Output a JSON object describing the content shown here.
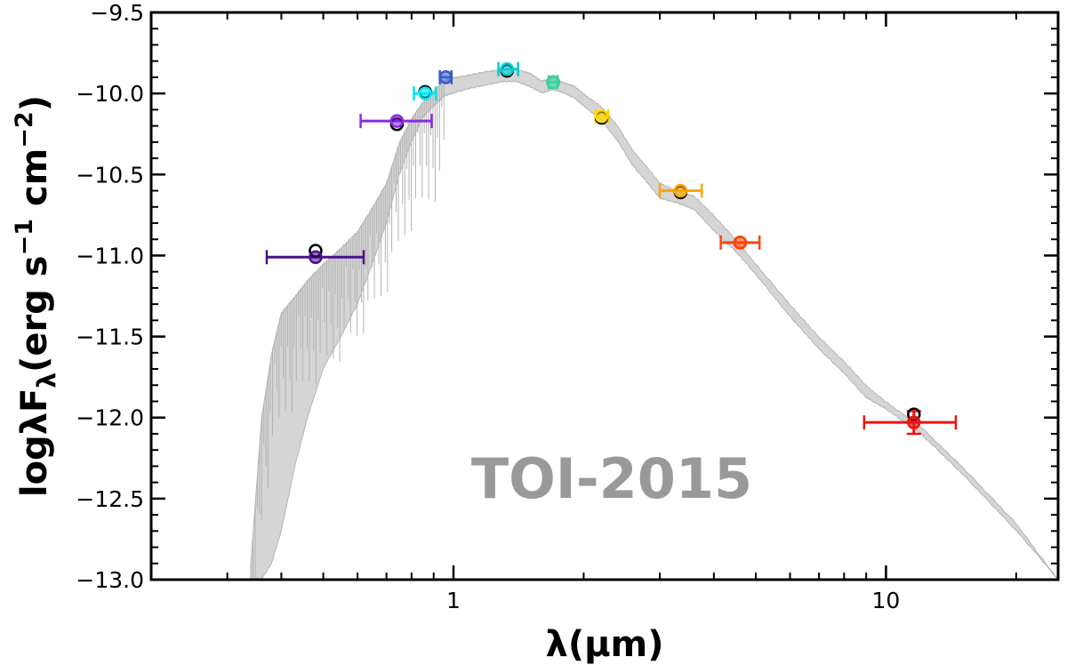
{
  "chart_data": {
    "type": "scatter",
    "xlabel": "λ(μm)",
    "ylabel_parts": {
      "pre": "logλF",
      "sub": "λ",
      "mid1": "(erg s",
      "sup1": "−1",
      "mid2": " cm",
      "sup2": "−2",
      "post": ")"
    },
    "ylabel": "logλFλ(erg s−1 cm−2)",
    "annotation": "TOI-2015",
    "x_scale": "log",
    "xlim": [
      0.2,
      25
    ],
    "ylim": [
      -13.0,
      -9.5
    ],
    "x_ticks": [
      1,
      10
    ],
    "x_tick_labels": [
      "1",
      "10"
    ],
    "y_ticks": [
      -13.0,
      -12.5,
      -12.0,
      -11.5,
      -11.0,
      -10.5,
      -10.0,
      -9.5
    ],
    "y_tick_labels": [
      "−13.0",
      "−12.5",
      "−12.0",
      "−11.5",
      "−11.0",
      "−10.5",
      "−10.0",
      "−9.5"
    ],
    "grid": false,
    "model_color": "#b3b3b3",
    "model_envelope": {
      "x": [
        0.34,
        0.36,
        0.38,
        0.4,
        0.43,
        0.46,
        0.5,
        0.55,
        0.6,
        0.65,
        0.7,
        0.75,
        0.8,
        0.85,
        0.9,
        0.95,
        1.0,
        1.1,
        1.2,
        1.3,
        1.4,
        1.5,
        1.6,
        1.7,
        1.8,
        1.9,
        2.0,
        2.2,
        2.4,
        2.6,
        2.8,
        3.0,
        3.3,
        3.6,
        4.0,
        4.5,
        5.0,
        6.0,
        7.0,
        8.0,
        9.0,
        10.0,
        12.0,
        15.0,
        20.0,
        25.0
      ],
      "y_high": [
        -12.9,
        -12.0,
        -11.6,
        -11.35,
        -11.25,
        -11.15,
        -11.05,
        -10.95,
        -10.85,
        -10.7,
        -10.55,
        -10.3,
        -10.15,
        -10.05,
        -9.98,
        -9.92,
        -9.9,
        -9.88,
        -9.86,
        -9.85,
        -9.85,
        -9.87,
        -9.92,
        -9.9,
        -9.93,
        -9.95,
        -10.0,
        -10.08,
        -10.2,
        -10.35,
        -10.45,
        -10.55,
        -10.6,
        -10.63,
        -10.75,
        -10.9,
        -11.05,
        -11.3,
        -11.5,
        -11.65,
        -11.8,
        -11.9,
        -12.05,
        -12.3,
        -12.65,
        -13.0
      ],
      "y_low": [
        -13.0,
        -13.0,
        -12.9,
        -12.7,
        -12.3,
        -12.0,
        -11.7,
        -11.5,
        -11.3,
        -11.05,
        -10.8,
        -10.5,
        -10.3,
        -10.15,
        -10.08,
        -10.02,
        -10.0,
        -9.97,
        -9.95,
        -9.93,
        -9.93,
        -9.96,
        -10.0,
        -9.98,
        -10.0,
        -10.03,
        -10.08,
        -10.17,
        -10.3,
        -10.45,
        -10.55,
        -10.65,
        -10.68,
        -10.72,
        -10.85,
        -10.98,
        -11.12,
        -11.38,
        -11.58,
        -11.73,
        -11.88,
        -11.95,
        -12.1,
        -12.35,
        -12.7,
        -13.0
      ]
    },
    "points": [
      {
        "x": 0.48,
        "x_err_low": 0.37,
        "x_err_high": 0.62,
        "y": -11.01,
        "y_model": -10.97,
        "color": "#4b0f8c"
      },
      {
        "x": 0.74,
        "x_err_low": 0.61,
        "x_err_high": 0.89,
        "y": -10.17,
        "y_model": -10.19,
        "color": "#8a2be2"
      },
      {
        "x": 0.86,
        "x_err_low": 0.81,
        "x_err_high": 0.91,
        "y": -10.0,
        "y_model": -9.99,
        "color": "#00e5ee"
      },
      {
        "x": 0.96,
        "x_err_low": 0.93,
        "x_err_high": 0.99,
        "y": -9.9,
        "y_model": -9.9,
        "color": "#3a5fcd"
      },
      {
        "x": 1.33,
        "x_err_low": 1.27,
        "x_err_high": 1.41,
        "y": -9.85,
        "y_model": -9.86,
        "color": "#00ced1"
      },
      {
        "x": 1.7,
        "x_err_low": 1.66,
        "x_err_high": 1.74,
        "y": -9.93,
        "y_model": -9.93,
        "color": "#3dd6a5"
      },
      {
        "x": 2.2,
        "x_err_low": 2.13,
        "x_err_high": 2.28,
        "y": -10.14,
        "y_model": -10.15,
        "color": "#ffd700"
      },
      {
        "x": 3.35,
        "x_err_low": 3.0,
        "x_err_high": 3.75,
        "y": -10.6,
        "y_model": -10.61,
        "color": "#ffa500"
      },
      {
        "x": 4.6,
        "x_err_low": 4.15,
        "x_err_high": 5.1,
        "y": -10.92,
        "y_model": -10.92,
        "color": "#ff4500"
      },
      {
        "x": 11.6,
        "x_err_low": 8.9,
        "x_err_high": 14.5,
        "y": -12.03,
        "y_model": -11.98,
        "y_err": 0.07,
        "color": "#ee1111"
      }
    ]
  }
}
